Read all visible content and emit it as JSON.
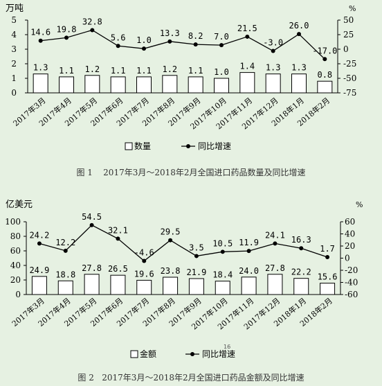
{
  "colors": {
    "background": "#e6f1e2",
    "ink": "#000000",
    "bar_fill": "#ffffff"
  },
  "page_number": "16",
  "charts": [
    {
      "caption": "图 1    2017年3月～2018年2月全国进口药品数量及同比增速"
    },
    {
      "caption": "图 2   2017年3月～2018年2月全国进口药品金额及同比增速"
    }
  ],
  "chart_data": [
    {
      "type": "bar",
      "categories": [
        "2017年3月",
        "2017年4月",
        "2017年5月",
        "2017年6月",
        "2017年7月",
        "2017年8月",
        "2017年9月",
        "2017年10月",
        "2017年11月",
        "2017年12月",
        "2018年1月",
        "2018年2月"
      ],
      "series": [
        {
          "name": "数量",
          "type": "bar",
          "axis": "left",
          "values": [
            1.3,
            1.1,
            1.2,
            1.1,
            1.1,
            1.2,
            1.1,
            1.0,
            1.4,
            1.3,
            1.3,
            0.8
          ],
          "labels": [
            "1.3",
            "1.1",
            "1.2",
            "1.1",
            "1.1",
            "1.2",
            "1.1",
            "1.0",
            "1.4",
            "1.3",
            "1.3",
            "0.8"
          ]
        },
        {
          "name": "同比增速",
          "type": "line",
          "axis": "right",
          "values": [
            14.6,
            19.8,
            32.8,
            5.6,
            1.0,
            13.3,
            8.2,
            7.0,
            21.5,
            -3.0,
            26.0,
            -17.0
          ],
          "labels": [
            "14.6",
            "19.8",
            "32.8",
            "5.6",
            "1.0",
            "13.3",
            "8.2",
            "7.0",
            "21.5",
            "-3.0",
            "26.0",
            "-17.0"
          ]
        }
      ],
      "left_unit": "万吨",
      "right_unit": "%",
      "ylim_left": [
        0,
        5
      ],
      "ylim_right": [
        -75,
        50
      ],
      "yticks_left": [
        "0",
        "1",
        "2",
        "3",
        "4",
        "5"
      ],
      "yticks_right": [
        "-75",
        "-50",
        "-25",
        "0",
        "25",
        "50"
      ],
      "legend": {
        "position": "bottom",
        "bar_label": "数量",
        "line_label": "同比增速"
      }
    },
    {
      "type": "bar",
      "categories": [
        "2017年3月",
        "2017年4月",
        "2017年5月",
        "2017年6月",
        "2017年7月",
        "2017年8月",
        "2017年9月",
        "2017年10月",
        "2017年11月",
        "2017年12月",
        "2018年1月",
        "2018年2月"
      ],
      "series": [
        {
          "name": "金额",
          "type": "bar",
          "axis": "left",
          "values": [
            24.9,
            18.8,
            27.8,
            26.5,
            19.6,
            23.8,
            21.9,
            18.4,
            24.0,
            27.8,
            22.2,
            15.6
          ],
          "labels": [
            "24.9",
            "18.8",
            "27.8",
            "26.5",
            "19.6",
            "23.8",
            "21.9",
            "18.4",
            "24.0",
            "27.8",
            "22.2",
            "15.6"
          ]
        },
        {
          "name": "同比增速",
          "type": "line",
          "axis": "right",
          "values": [
            24.2,
            12.2,
            54.5,
            32.1,
            -4.6,
            29.5,
            3.5,
            10.5,
            11.9,
            24.1,
            16.3,
            1.7
          ],
          "labels": [
            "24.2",
            "12.2",
            "54.5",
            "32.1",
            "-4.6",
            "29.5",
            "3.5",
            "10.5",
            "11.9",
            "24.1",
            "16.3",
            "1.7"
          ]
        }
      ],
      "left_unit": "亿美元",
      "right_unit": "%",
      "ylim_left": [
        0,
        100
      ],
      "ylim_right": [
        -60,
        60
      ],
      "yticks_left": [
        "0",
        "20",
        "40",
        "60",
        "80",
        "100"
      ],
      "yticks_right": [
        "-60",
        "-40",
        "-20",
        "0",
        "20",
        "40",
        "60"
      ],
      "legend": {
        "position": "bottom",
        "bar_label": "金额",
        "line_label": "同比增速"
      }
    }
  ]
}
